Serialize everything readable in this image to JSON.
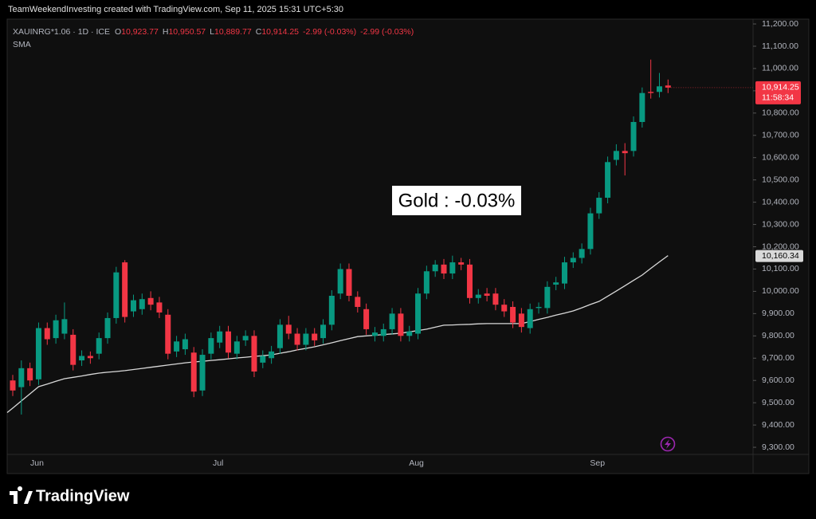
{
  "page": {
    "credit": "TeamWeekendInvesting created with TradingView.com, Sep 11, 2025 15:31 UTC+5:30",
    "logo": "TradingView"
  },
  "chart_data": {
    "type": "candlestick",
    "symbol": "XAUINRG*1.06 · 1D · ICE",
    "ohlc_legend": [
      {
        "key": "O",
        "value": "10,923.77"
      },
      {
        "key": "H",
        "value": "10,950.57"
      },
      {
        "key": "L",
        "value": "10,889.77"
      },
      {
        "key": "C",
        "value": "10,914.25"
      }
    ],
    "change_labels": [
      "-2.99 (-0.03%)",
      "-2.99 (-0.03%)"
    ],
    "annotation": "Gold : -0.03%",
    "up_color": "#089981",
    "down_color": "#f23645",
    "grid": false,
    "categories": [
      null,
      null,
      null,
      "Jun",
      null,
      null,
      null,
      null,
      null,
      null,
      null,
      null,
      null,
      null,
      null,
      null,
      null,
      null,
      null,
      null,
      null,
      null,
      null,
      null,
      "Jul",
      null,
      null,
      null,
      null,
      null,
      null,
      null,
      null,
      null,
      null,
      null,
      null,
      null,
      null,
      null,
      null,
      null,
      null,
      null,
      null,
      null,
      null,
      "Aug",
      null,
      null,
      null,
      null,
      null,
      null,
      null,
      null,
      null,
      null,
      null,
      null,
      null,
      null,
      null,
      null,
      null,
      null,
      null,
      null,
      "Sep",
      null,
      null,
      null,
      null,
      null,
      null,
      null,
      null
    ],
    "open": [
      9600,
      9570,
      9655,
      9605,
      9835,
      9790,
      9810,
      9805,
      9690,
      9710,
      9720,
      9790,
      9880,
      10130,
      9910,
      9920,
      9970,
      9950,
      9895,
      9730,
      9740,
      9725,
      9555,
      9720,
      9770,
      9820,
      9720,
      9780,
      9800,
      9680,
      9700,
      9745,
      9850,
      9810,
      9760,
      9810,
      9790,
      9850,
      9990,
      10100,
      9975,
      9920,
      9800,
      9800,
      9830,
      9900,
      9800,
      9810,
      9990,
      10090,
      10120,
      10080,
      10130,
      10120,
      9970,
      9990,
      9990,
      9940,
      9930,
      9900,
      9835,
      9925,
      9925,
      10030,
      10035,
      10130,
      10150,
      10190,
      10350,
      10420,
      10590,
      10630,
      10630,
      10760,
      10895,
      10895,
      10923.77
    ],
    "high": [
      9625,
      9690,
      9680,
      9860,
      9860,
      9895,
      9950,
      9830,
      9735,
      9730,
      9815,
      9905,
      10110,
      10140,
      9985,
      9990,
      10000,
      9975,
      9920,
      9800,
      9810,
      9750,
      9740,
      9815,
      9845,
      9845,
      9800,
      9825,
      9825,
      9735,
      9755,
      9875,
      9890,
      9835,
      9835,
      9835,
      9875,
      10005,
      10125,
      10125,
      10000,
      9945,
      9840,
      9855,
      9925,
      9925,
      9845,
      10015,
      10115,
      10140,
      10145,
      10160,
      10150,
      10145,
      10010,
      10015,
      10015,
      9965,
      9955,
      9925,
      9945,
      9950,
      10045,
      10065,
      10155,
      10175,
      10215,
      10375,
      10445,
      10605,
      10660,
      10665,
      10785,
      10915,
      11040,
      10980,
      10950.57
    ],
    "low": [
      9530,
      9447,
      9575,
      9580,
      9760,
      9765,
      9785,
      9645,
      9665,
      9675,
      9695,
      9765,
      9855,
      9860,
      9885,
      9895,
      9915,
      9880,
      9695,
      9705,
      9715,
      9525,
      9530,
      9695,
      9745,
      9700,
      9695,
      9755,
      9615,
      9655,
      9675,
      9720,
      9785,
      9735,
      9735,
      9755,
      9765,
      9825,
      9965,
      9955,
      9905,
      9805,
      9775,
      9775,
      9805,
      9775,
      9775,
      9785,
      9965,
      10065,
      10055,
      10055,
      10095,
      9945,
      9945,
      9955,
      9915,
      9885,
      9835,
      9815,
      9810,
      9900,
      9900,
      10005,
      10010,
      10105,
      10125,
      10165,
      10325,
      10395,
      10565,
      10520,
      10605,
      10735,
      10865,
      10870,
      10889.77
    ],
    "close": [
      9555,
      9655,
      9600,
      9835,
      9785,
      9870,
      9875,
      9670,
      9710,
      9700,
      9790,
      9880,
      10085,
      9885,
      9960,
      9965,
      9940,
      9905,
      9720,
      9775,
      9785,
      9550,
      9715,
      9790,
      9820,
      9725,
      9775,
      9800,
      9640,
      9710,
      9730,
      9850,
      9810,
      9760,
      9810,
      9780,
      9850,
      9980,
      10100,
      9980,
      9930,
      9830,
      9815,
      9830,
      9900,
      9800,
      9820,
      9990,
      10090,
      10120,
      10080,
      10130,
      10120,
      9970,
      9985,
      9980,
      9940,
      9910,
      9860,
      9840,
      9920,
      9930,
      10020,
      10040,
      10130,
      10150,
      10190,
      10350,
      10420,
      10580,
      10630,
      10620,
      10760,
      10890,
      10890,
      10920,
      10914.25
    ],
    "last_price_label": "10,914.25",
    "countdown": "11:58:34",
    "sma": {
      "name": "SMA",
      "color": "#d9d9d9",
      "last_label": "10,160.34",
      "values": [
        9476,
        9508,
        9540,
        9572,
        9584,
        9596,
        9608,
        9614,
        9620,
        9627,
        9633,
        9637,
        9640,
        9644,
        9649,
        9654,
        9659,
        9664,
        9669,
        9674,
        9679,
        9683,
        9686,
        9690,
        9693,
        9697,
        9701,
        9704,
        9708,
        9711,
        9715,
        9722,
        9729,
        9737,
        9744,
        9751,
        9760,
        9769,
        9779,
        9788,
        9797,
        9800,
        9803,
        9806,
        9809,
        9812,
        9818,
        9824,
        9830,
        9839,
        9848,
        9849,
        9851,
        9852,
        9854,
        9855,
        9855,
        9855,
        9855,
        9855,
        9864,
        9874,
        9883,
        9893,
        9902,
        9912,
        9926,
        9941,
        9955,
        9978,
        10001,
        10025,
        10049,
        10073,
        10103,
        10132,
        10160.34
      ]
    },
    "ylim": [
      9268,
      11218
    ],
    "yticks": [
      {
        "value": 9300,
        "label": "9,300.00"
      },
      {
        "value": 9400,
        "label": "9,400.00"
      },
      {
        "value": 9500,
        "label": "9,500.00"
      },
      {
        "value": 9600,
        "label": "9,600.00"
      },
      {
        "value": 9700,
        "label": "9,700.00"
      },
      {
        "value": 9800,
        "label": "9,800.00"
      },
      {
        "value": 9900,
        "label": "9,900.00"
      },
      {
        "value": 10000,
        "label": "10,000.00"
      },
      {
        "value": 10100,
        "label": "10,100.00"
      },
      {
        "value": 10200,
        "label": "10,200.00"
      },
      {
        "value": 10300,
        "label": "10,300.00"
      },
      {
        "value": 10400,
        "label": "10,400.00"
      },
      {
        "value": 10500,
        "label": "10,500.00"
      },
      {
        "value": 10600,
        "label": "10,600.00"
      },
      {
        "value": 10700,
        "label": "10,700.00"
      },
      {
        "value": 10800,
        "label": "10,800.00"
      },
      {
        "value": 10900,
        "label": "10,900.00"
      },
      {
        "value": 11000,
        "label": "11,000.00"
      },
      {
        "value": 11100,
        "label": "11,100.00"
      },
      {
        "value": 11200,
        "label": "11,200.00"
      }
    ]
  }
}
